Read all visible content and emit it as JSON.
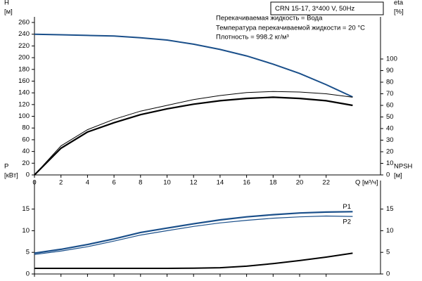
{
  "chart_data": [
    {
      "type": "line",
      "title": "CRN 15-17, 3*400 V, 50Hz",
      "annotations": [
        "Перекачиваемая жидкость = Вода",
        "Температура перекачиваемой жидкости = 20 °C",
        "Плотность = 998.2 кг/м³"
      ],
      "xlabel": "Q [м³/ч]",
      "ylabel": [
        "H",
        "[м]"
      ],
      "y2label": [
        "eta",
        "[%]"
      ],
      "x": [
        0,
        2,
        4,
        6,
        8,
        10,
        12,
        14,
        16,
        18,
        20,
        22,
        24
      ],
      "xlim": [
        0,
        26.1
      ],
      "xticks": [
        0,
        2,
        4,
        6,
        8,
        10,
        12,
        14,
        16,
        18,
        20,
        22
      ],
      "ylim": [
        0,
        260
      ],
      "yticks": [
        0,
        20,
        40,
        60,
        80,
        100,
        120,
        140,
        160,
        180,
        200,
        220,
        240,
        260
      ],
      "y2lim": [
        0,
        131.5
      ],
      "y2ticks": [
        0,
        10,
        20,
        30,
        40,
        50,
        60,
        70,
        80,
        90,
        100
      ],
      "series": [
        {
          "color": "#1a4f8a",
          "values": [
            240,
            239,
            238,
            237,
            234,
            230,
            223,
            214,
            203,
            189,
            173,
            154,
            133
          ]
        },
        {
          "color": "#000000",
          "axis": "y2",
          "values": [
            0,
            25,
            39,
            48,
            55,
            60,
            65,
            68.5,
            71,
            72,
            71.5,
            70,
            67
          ]
        },
        {
          "color": "#000000",
          "axis": "y2",
          "values": [
            0,
            23,
            37,
            45,
            52,
            57,
            61,
            64,
            66,
            67,
            66,
            64,
            60
          ]
        }
      ]
    },
    {
      "type": "line",
      "ylabel": [
        "P",
        "[кВт]"
      ],
      "y2label": [
        "NPSH",
        "[м]"
      ],
      "x": [
        0,
        2,
        4,
        6,
        8,
        10,
        12,
        14,
        16,
        18,
        20,
        22,
        24
      ],
      "xlim": [
        0,
        26.1
      ],
      "xticks": [
        0,
        2,
        4,
        6,
        8,
        10,
        12,
        14,
        16,
        18,
        20,
        22
      ],
      "ylim": [
        0,
        20.3
      ],
      "yticks": [
        0,
        5,
        10,
        15
      ],
      "y2lim": [
        0,
        20.3
      ],
      "y2ticks": [
        0,
        5,
        10,
        15
      ],
      "series": [
        {
          "name": "P1",
          "color": "#1a4f8a",
          "values": [
            4.8,
            5.7,
            6.8,
            8.1,
            9.6,
            10.6,
            11.6,
            12.5,
            13.2,
            13.7,
            14.1,
            14.3,
            14.4
          ]
        },
        {
          "name": "P2",
          "color": "#1a4f8a",
          "values": [
            4.5,
            5.3,
            6.3,
            7.6,
            9.0,
            10.0,
            11.0,
            11.8,
            12.4,
            12.9,
            13.2,
            13.4,
            13.3
          ]
        },
        {
          "color": "#000000",
          "axis": "y2",
          "values": [
            1.3,
            1.3,
            1.3,
            1.3,
            1.3,
            1.3,
            1.35,
            1.45,
            1.8,
            2.4,
            3.1,
            3.9,
            4.8
          ]
        }
      ]
    }
  ]
}
